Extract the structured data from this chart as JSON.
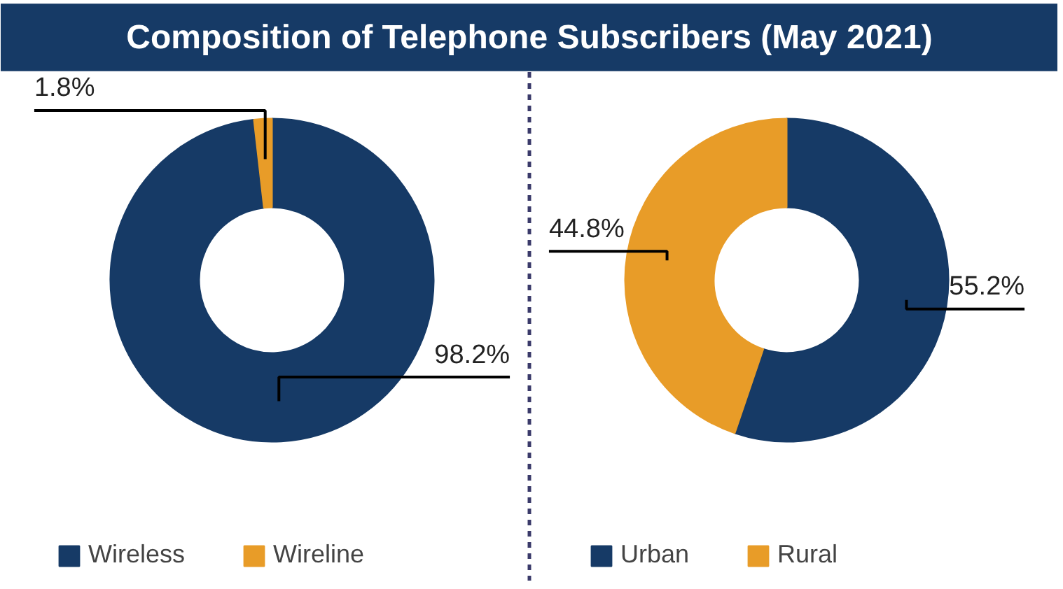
{
  "chart_data": [
    {
      "type": "donut",
      "title": "Composition of Telephone Subscribers (May 2021)",
      "categories": [
        "Wireless",
        "Wireline"
      ],
      "values": [
        98.2,
        1.8
      ],
      "colors": [
        "#163a66",
        "#e89c28"
      ],
      "value_labels": [
        "98.2%",
        "1.8%"
      ],
      "legend": "bottom"
    },
    {
      "type": "donut",
      "categories": [
        "Urban",
        "Rural"
      ],
      "values": [
        55.2,
        44.8
      ],
      "colors": [
        "#163a66",
        "#e89c28"
      ],
      "value_labels": [
        "55.2%",
        "44.8%"
      ],
      "legend": "bottom"
    }
  ]
}
